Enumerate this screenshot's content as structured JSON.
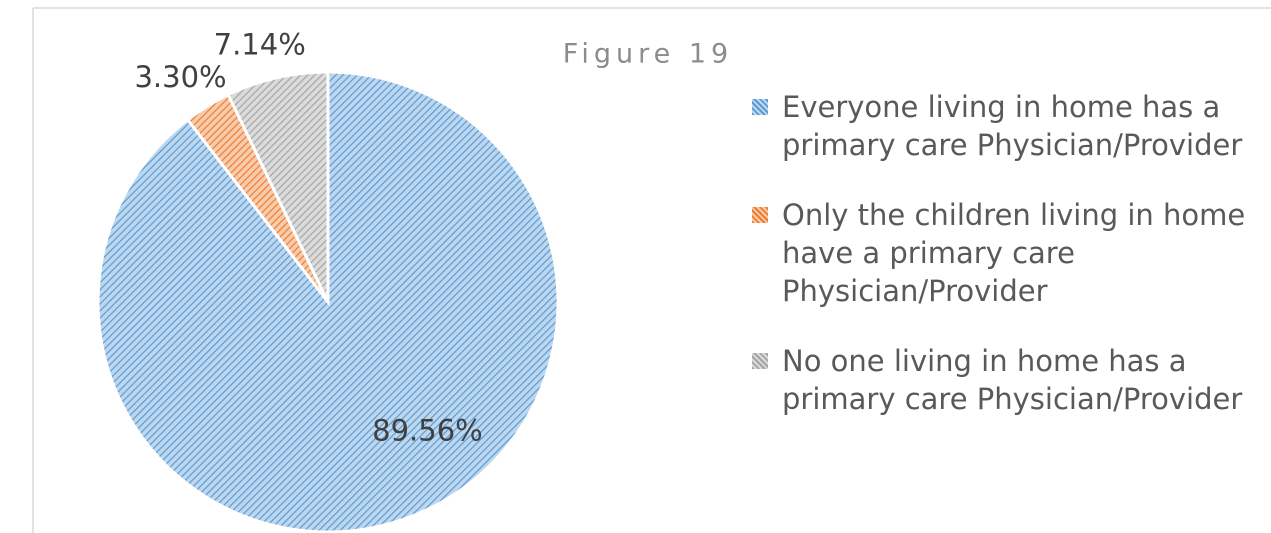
{
  "chart_data": {
    "type": "pie",
    "title": "Figure 19",
    "categories": [
      "Everyone living in home has a primary care Physician/Provider",
      "Only the children living in home have a primary care Physician/Provider",
      "No one living in home has a primary care Physician/Provider"
    ],
    "values": [
      89.56,
      3.3,
      7.14
    ],
    "value_labels": [
      "89.56%",
      "3.30%",
      "7.14%"
    ],
    "colors": [
      "#5b9bd5",
      "#ed7d31",
      "#a5a5a5"
    ]
  }
}
